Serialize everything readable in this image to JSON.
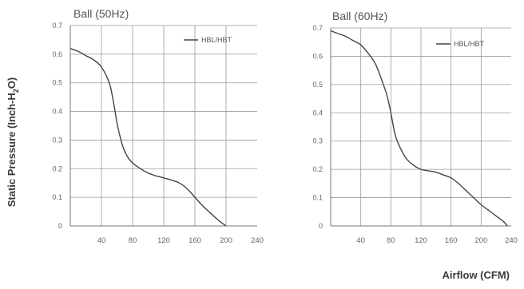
{
  "y_axis_label": "Static Pressure (Inch-H2O)",
  "x_axis_label": "Airflow (CFM)",
  "chart_data": [
    {
      "type": "line",
      "title": "Ball (50Hz)",
      "xlim": [
        0,
        240
      ],
      "ylim": [
        0,
        0.7
      ],
      "xticks": [
        "40",
        "80",
        "120",
        "160",
        "200",
        "240"
      ],
      "yticks": [
        "0",
        "0.1",
        "0.2",
        "0.3",
        "0.4",
        "0.5",
        "0.6",
        "0.7"
      ],
      "grid": true,
      "legend_position": "top-right",
      "series": [
        {
          "name": "HBL/HBT",
          "x": [
            0,
            10,
            20,
            30,
            40,
            50,
            55,
            60,
            65,
            70,
            75,
            80,
            90,
            100,
            110,
            120,
            130,
            140,
            150,
            160,
            170,
            180,
            190,
            200
          ],
          "y": [
            0.62,
            0.61,
            0.595,
            0.58,
            0.555,
            0.5,
            0.44,
            0.36,
            0.3,
            0.26,
            0.235,
            0.22,
            0.2,
            0.185,
            0.175,
            0.168,
            0.16,
            0.15,
            0.13,
            0.1,
            0.07,
            0.045,
            0.02,
            0.0
          ]
        }
      ]
    },
    {
      "type": "line",
      "title": "Ball (60Hz)",
      "xlim": [
        0,
        240
      ],
      "ylim": [
        0,
        0.7
      ],
      "xticks": [
        "40",
        "80",
        "120",
        "160",
        "200",
        "240"
      ],
      "yticks": [
        "0",
        "0.1",
        "0.2",
        "0.3",
        "0.4",
        "0.5",
        "0.6",
        "0.7"
      ],
      "grid": true,
      "legend_position": "top-right",
      "series": [
        {
          "name": "HBL/HBT",
          "x": [
            0,
            10,
            20,
            30,
            40,
            50,
            60,
            70,
            75,
            80,
            85,
            90,
            100,
            110,
            120,
            130,
            140,
            150,
            160,
            170,
            180,
            190,
            200,
            210,
            220,
            230,
            235
          ],
          "y": [
            0.69,
            0.68,
            0.67,
            0.655,
            0.64,
            0.61,
            0.57,
            0.5,
            0.46,
            0.4,
            0.33,
            0.29,
            0.24,
            0.215,
            0.2,
            0.195,
            0.19,
            0.18,
            0.17,
            0.15,
            0.125,
            0.1,
            0.075,
            0.055,
            0.035,
            0.015,
            0.0
          ]
        }
      ]
    }
  ]
}
